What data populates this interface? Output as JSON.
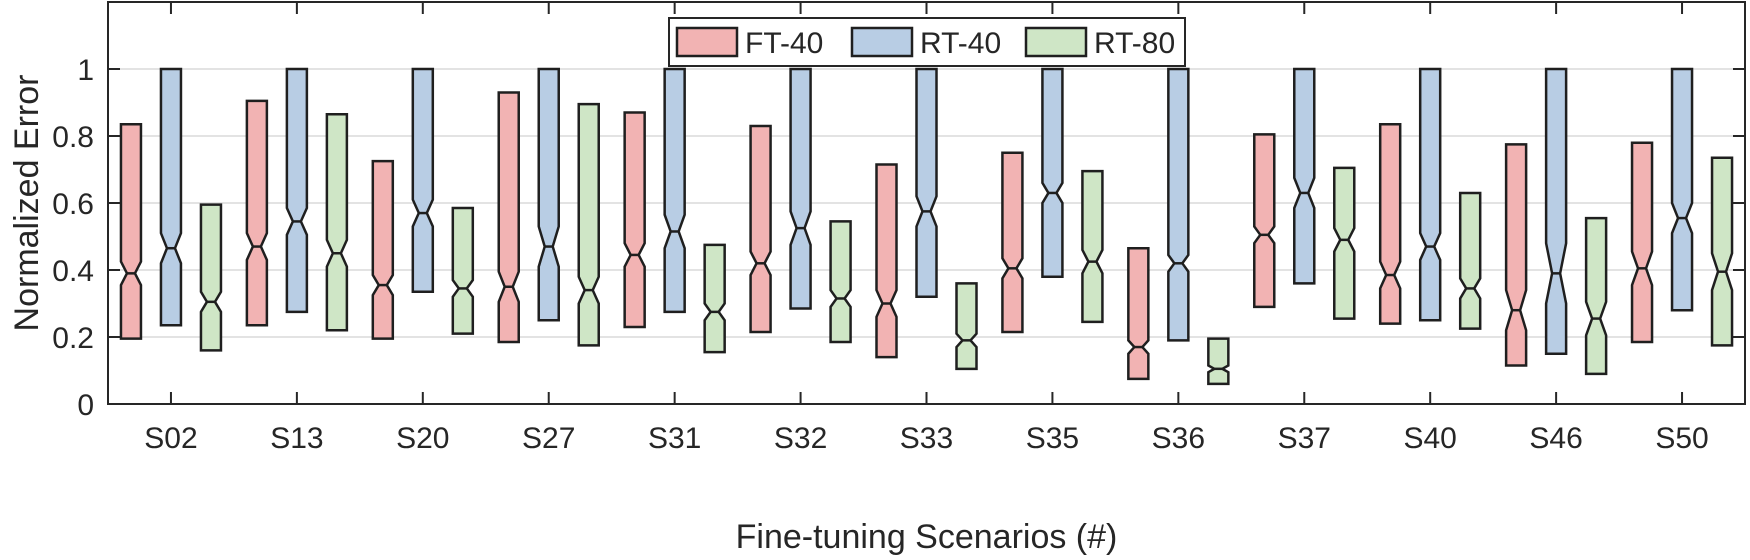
{
  "chart_data": {
    "type": "notched-boxplot",
    "title": "",
    "xlabel": "Fine-tuning Scenarios (#)",
    "ylabel": "Normalized Error",
    "ylim": [
      0,
      1.2
    ],
    "yticks": [
      0,
      0.2,
      0.4,
      0.6,
      0.8,
      1
    ],
    "ytick_labels": [
      "0",
      "0.2",
      "0.4",
      "0.6",
      "0.8",
      "1"
    ],
    "grid": "horizontal",
    "legend_position": "top-center",
    "categories": [
      "S02",
      "S13",
      "S20",
      "S27",
      "S31",
      "S32",
      "S33",
      "S35",
      "S36",
      "S37",
      "S40",
      "S46",
      "S50"
    ],
    "series": [
      {
        "name": "FT-40",
        "color": "#f2b3b3",
        "boxes": [
          {
            "q1": 0.195,
            "median": 0.39,
            "q3": 0.835,
            "notch_lo": 0.355,
            "notch_hi": 0.425
          },
          {
            "q1": 0.235,
            "median": 0.47,
            "q3": 0.905,
            "notch_lo": 0.43,
            "notch_hi": 0.51
          },
          {
            "q1": 0.195,
            "median": 0.355,
            "q3": 0.725,
            "notch_lo": 0.325,
            "notch_hi": 0.385
          },
          {
            "q1": 0.185,
            "median": 0.35,
            "q3": 0.93,
            "notch_lo": 0.305,
            "notch_hi": 0.395
          },
          {
            "q1": 0.23,
            "median": 0.445,
            "q3": 0.87,
            "notch_lo": 0.41,
            "notch_hi": 0.48
          },
          {
            "q1": 0.215,
            "median": 0.42,
            "q3": 0.83,
            "notch_lo": 0.385,
            "notch_hi": 0.455
          },
          {
            "q1": 0.14,
            "median": 0.3,
            "q3": 0.715,
            "notch_lo": 0.26,
            "notch_hi": 0.34
          },
          {
            "q1": 0.215,
            "median": 0.405,
            "q3": 0.75,
            "notch_lo": 0.375,
            "notch_hi": 0.435
          },
          {
            "q1": 0.075,
            "median": 0.17,
            "q3": 0.465,
            "notch_lo": 0.15,
            "notch_hi": 0.19
          },
          {
            "q1": 0.29,
            "median": 0.505,
            "q3": 0.805,
            "notch_lo": 0.48,
            "notch_hi": 0.53
          },
          {
            "q1": 0.24,
            "median": 0.385,
            "q3": 0.835,
            "notch_lo": 0.345,
            "notch_hi": 0.425
          },
          {
            "q1": 0.115,
            "median": 0.28,
            "q3": 0.775,
            "notch_lo": 0.22,
            "notch_hi": 0.34
          },
          {
            "q1": 0.185,
            "median": 0.405,
            "q3": 0.78,
            "notch_lo": 0.355,
            "notch_hi": 0.455
          }
        ]
      },
      {
        "name": "RT-40",
        "color": "#b8cde4",
        "boxes": [
          {
            "q1": 0.235,
            "median": 0.465,
            "q3": 1.0,
            "notch_lo": 0.42,
            "notch_hi": 0.51
          },
          {
            "q1": 0.275,
            "median": 0.545,
            "q3": 1.0,
            "notch_lo": 0.505,
            "notch_hi": 0.585
          },
          {
            "q1": 0.335,
            "median": 0.57,
            "q3": 1.0,
            "notch_lo": 0.53,
            "notch_hi": 0.61
          },
          {
            "q1": 0.25,
            "median": 0.47,
            "q3": 1.0,
            "notch_lo": 0.41,
            "notch_hi": 0.53
          },
          {
            "q1": 0.275,
            "median": 0.515,
            "q3": 1.0,
            "notch_lo": 0.465,
            "notch_hi": 0.565
          },
          {
            "q1": 0.285,
            "median": 0.525,
            "q3": 1.0,
            "notch_lo": 0.475,
            "notch_hi": 0.575
          },
          {
            "q1": 0.32,
            "median": 0.575,
            "q3": 1.0,
            "notch_lo": 0.53,
            "notch_hi": 0.62
          },
          {
            "q1": 0.38,
            "median": 0.63,
            "q3": 1.0,
            "notch_lo": 0.6,
            "notch_hi": 0.66
          },
          {
            "q1": 0.19,
            "median": 0.42,
            "q3": 1.0,
            "notch_lo": 0.395,
            "notch_hi": 0.445
          },
          {
            "q1": 0.36,
            "median": 0.63,
            "q3": 1.0,
            "notch_lo": 0.585,
            "notch_hi": 0.675
          },
          {
            "q1": 0.25,
            "median": 0.47,
            "q3": 1.0,
            "notch_lo": 0.43,
            "notch_hi": 0.51
          },
          {
            "q1": 0.15,
            "median": 0.39,
            "q3": 1.0,
            "notch_lo": 0.3,
            "notch_hi": 0.48
          },
          {
            "q1": 0.28,
            "median": 0.555,
            "q3": 1.0,
            "notch_lo": 0.51,
            "notch_hi": 0.6
          }
        ]
      },
      {
        "name": "RT-80",
        "color": "#cfe6c6",
        "boxes": [
          {
            "q1": 0.16,
            "median": 0.305,
            "q3": 0.595,
            "notch_lo": 0.275,
            "notch_hi": 0.335
          },
          {
            "q1": 0.22,
            "median": 0.45,
            "q3": 0.865,
            "notch_lo": 0.41,
            "notch_hi": 0.49
          },
          {
            "q1": 0.21,
            "median": 0.345,
            "q3": 0.585,
            "notch_lo": 0.32,
            "notch_hi": 0.37
          },
          {
            "q1": 0.175,
            "median": 0.34,
            "q3": 0.895,
            "notch_lo": 0.3,
            "notch_hi": 0.38
          },
          {
            "q1": 0.155,
            "median": 0.275,
            "q3": 0.475,
            "notch_lo": 0.25,
            "notch_hi": 0.3
          },
          {
            "q1": 0.185,
            "median": 0.315,
            "q3": 0.545,
            "notch_lo": 0.29,
            "notch_hi": 0.34
          },
          {
            "q1": 0.105,
            "median": 0.19,
            "q3": 0.36,
            "notch_lo": 0.17,
            "notch_hi": 0.21
          },
          {
            "q1": 0.245,
            "median": 0.425,
            "q3": 0.695,
            "notch_lo": 0.39,
            "notch_hi": 0.46
          },
          {
            "q1": 0.06,
            "median": 0.105,
            "q3": 0.195,
            "notch_lo": 0.095,
            "notch_hi": 0.115
          },
          {
            "q1": 0.255,
            "median": 0.49,
            "q3": 0.705,
            "notch_lo": 0.455,
            "notch_hi": 0.525
          },
          {
            "q1": 0.225,
            "median": 0.345,
            "q3": 0.63,
            "notch_lo": 0.315,
            "notch_hi": 0.375
          },
          {
            "q1": 0.09,
            "median": 0.255,
            "q3": 0.555,
            "notch_lo": 0.205,
            "notch_hi": 0.305
          },
          {
            "q1": 0.175,
            "median": 0.395,
            "q3": 0.735,
            "notch_lo": 0.34,
            "notch_hi": 0.45
          }
        ]
      }
    ]
  }
}
